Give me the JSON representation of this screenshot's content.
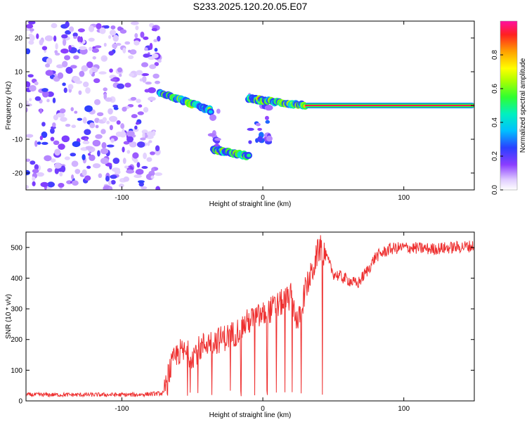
{
  "title": "S233.2025.120.20.05.E07",
  "chart_data": [
    {
      "type": "heatmap",
      "xlabel": "Height of straight line (km)",
      "ylabel": "Frequency (Hz)",
      "xlim": [
        -168,
        150
      ],
      "ylim": [
        -25,
        25
      ],
      "xticks": [
        -100,
        0,
        100
      ],
      "xtick_labels": [
        "-100",
        "0",
        "100"
      ],
      "yticks": [
        -20,
        -10,
        0,
        10,
        20
      ],
      "ytick_labels": [
        "-20",
        "-10",
        "0",
        "10",
        "20"
      ],
      "grid": false,
      "colorbar": {
        "label": "Normalized spectral amplitude",
        "range": [
          0,
          1
        ],
        "ticks": [
          0.0,
          0.2,
          0.4,
          0.6,
          0.8
        ],
        "tick_labels": [
          "0.0",
          "0.2",
          "0.4",
          "0.6",
          "0.8"
        ]
      },
      "regions": [
        {
          "x": [
            -168,
            -73
          ],
          "freq": [
            -25,
            25
          ],
          "amplitude": [
            0.05,
            0.25
          ],
          "description": "noise"
        },
        {
          "x": [
            -73,
            -37
          ],
          "freq_start": 4,
          "freq_end": -1.5,
          "amplitude": [
            0.35,
            0.9
          ]
        },
        {
          "x": [
            -37,
            -30
          ],
          "freq": [
            -1,
            -13
          ],
          "amplitude": [
            0.1,
            0.2
          ]
        },
        {
          "x": [
            -35,
            -10
          ],
          "freq_start": -13,
          "freq_end": -15,
          "amplitude": [
            0.3,
            0.85
          ]
        },
        {
          "x": [
            -10,
            5
          ],
          "freq": [
            -11,
            3
          ],
          "amplitude": [
            0.1,
            0.3
          ]
        },
        {
          "x": [
            -10,
            30
          ],
          "freq_start": 2,
          "freq_end": 0,
          "amplitude": [
            0.3,
            0.9
          ]
        },
        {
          "x": [
            30,
            150
          ],
          "freq": 0,
          "amplitude": 0.95
        }
      ]
    },
    {
      "type": "line",
      "xlabel": "Height of straight line (km)",
      "ylabel": "SNR (10 * v/v)",
      "xlim": [
        -168,
        150
      ],
      "ylim": [
        0,
        550
      ],
      "xticks": [
        -100,
        0,
        100
      ],
      "xtick_labels": [
        "-100",
        "0",
        "100"
      ],
      "yticks": [
        0,
        100,
        200,
        300,
        400,
        500
      ],
      "ytick_labels": [
        "0",
        "100",
        "200",
        "300",
        "400",
        "500"
      ],
      "grid": false,
      "series": [
        {
          "color": "#ee3030",
          "x": [
            -168,
            -140,
            -110,
            -90,
            -70,
            -67,
            -60,
            -50,
            -40,
            -30,
            -20,
            -10,
            0,
            10,
            20,
            25,
            30,
            35,
            40,
            44,
            50,
            60,
            67,
            75,
            80,
            90,
            100,
            120,
            150
          ],
          "y": [
            20,
            20,
            20,
            20,
            25,
            90,
            160,
            150,
            190,
            200,
            220,
            260,
            280,
            310,
            340,
            250,
            360,
            420,
            500,
            480,
            415,
            395,
            380,
            430,
            470,
            495,
            500,
            495,
            505
          ]
        }
      ]
    }
  ]
}
